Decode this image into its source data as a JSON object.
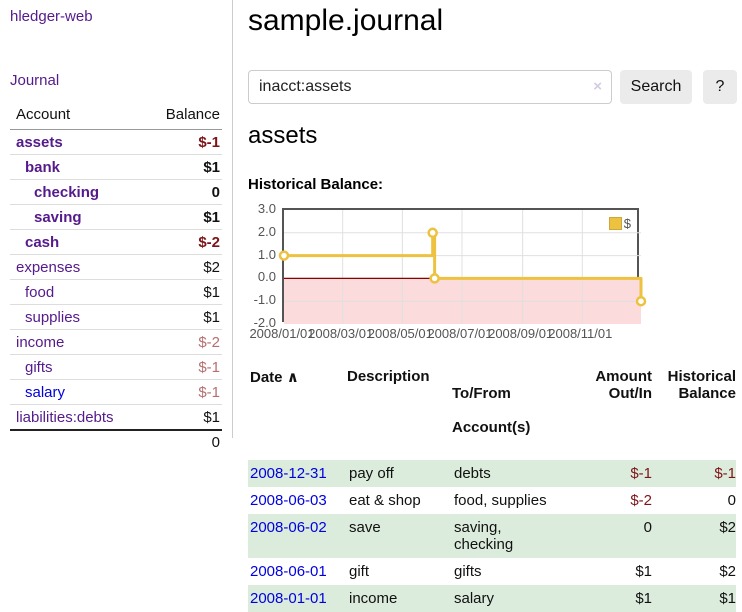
{
  "app": {
    "title": "hledger-web",
    "nav_journal": "Journal"
  },
  "sidebar": {
    "header": {
      "account": "Account",
      "balance": "Balance"
    },
    "accounts": [
      {
        "name": "assets",
        "depth": 0,
        "balance": "$-1",
        "emph": true,
        "bal_class": "bal-neg",
        "link_color": "purple"
      },
      {
        "name": "bank",
        "depth": 1,
        "balance": "$1",
        "emph": true,
        "bal_class": "",
        "link_color": "purple"
      },
      {
        "name": "checking",
        "depth": 2,
        "balance": "0",
        "emph": true,
        "bal_class": "",
        "link_color": "purple"
      },
      {
        "name": "saving",
        "depth": 2,
        "balance": "$1",
        "emph": true,
        "bal_class": "",
        "link_color": "purple"
      },
      {
        "name": "cash",
        "depth": 1,
        "balance": "$-2",
        "emph": true,
        "bal_class": "bal-neg",
        "link_color": "purple"
      },
      {
        "name": "expenses",
        "depth": 0,
        "balance": "$2",
        "emph": false,
        "bal_class": "",
        "link_color": "purple"
      },
      {
        "name": "food",
        "depth": 1,
        "balance": "$1",
        "emph": false,
        "bal_class": "",
        "link_color": "purple"
      },
      {
        "name": "supplies",
        "depth": 1,
        "balance": "$1",
        "emph": false,
        "bal_class": "",
        "link_color": "purple"
      },
      {
        "name": "income",
        "depth": 0,
        "balance": "$-2",
        "emph": false,
        "bal_class": "bal-neg-soft",
        "link_color": "purple"
      },
      {
        "name": "gifts",
        "depth": 1,
        "balance": "$-1",
        "emph": false,
        "bal_class": "bal-neg-soft",
        "link_color": "purple"
      },
      {
        "name": "salary",
        "depth": 1,
        "balance": "$-1",
        "emph": false,
        "bal_class": "bal-neg-soft",
        "link_color": "blue"
      },
      {
        "name": "liabilities:debts",
        "depth": 0,
        "balance": "$1",
        "emph": false,
        "bal_class": "",
        "link_color": "purple"
      }
    ],
    "total": "0"
  },
  "main": {
    "title": "sample.journal",
    "search": {
      "value": "inacct:assets",
      "clear_icon": "×",
      "button_label": "Search",
      "help_label": "?"
    },
    "account_heading": "assets",
    "chart_label": "Historical Balance:"
  },
  "chart_data": {
    "type": "line",
    "title": "Historical Balance:",
    "step": true,
    "series": [
      {
        "name": "$",
        "color": "#edc240",
        "points": [
          [
            "2008-01-01",
            1
          ],
          [
            "2008-06-01",
            2
          ],
          [
            "2008-06-03",
            0
          ],
          [
            "2008-12-31",
            -1
          ]
        ]
      }
    ],
    "ylim": [
      -2,
      3
    ],
    "yticks": [
      3.0,
      2.0,
      1.0,
      0.0,
      -1.0,
      -2.0
    ],
    "xticks": [
      "2008/01/01",
      "2008/03/01",
      "2008/05/01",
      "2008/07/01",
      "2008/09/01",
      "2008/11/01"
    ],
    "x_domain": [
      "2008-01-01",
      "2008-12-31"
    ],
    "grid_color": "#e0e0e0",
    "negative_region_fill": "#fbdbdb",
    "zero_line_color": "#8b0000",
    "legend_position": "top-right",
    "legend_label": "$"
  },
  "register": {
    "headers": {
      "date": "Date",
      "sort_indicator": "∧",
      "description": "Description",
      "accounts_l1": "To/From",
      "accounts_l2": "Account(s)",
      "amount_l1": "Amount",
      "amount_l2": "Out/In",
      "balance_l1": "Historical",
      "balance_l2": "Balance"
    },
    "rows": [
      {
        "date": "2008-12-31",
        "description": "pay off",
        "accounts": "debts",
        "amount": "$-1",
        "amount_neg": true,
        "balance": "$-1",
        "balance_neg": true,
        "shaded": true
      },
      {
        "date": "2008-06-03",
        "description": "eat & shop",
        "accounts": "food, supplies",
        "amount": "$-2",
        "amount_neg": true,
        "balance": "0",
        "balance_neg": false,
        "shaded": false
      },
      {
        "date": "2008-06-02",
        "description": "save",
        "accounts": "saving,\nchecking",
        "amount": "0",
        "amount_neg": false,
        "balance": "$2",
        "balance_neg": false,
        "shaded": true
      },
      {
        "date": "2008-06-01",
        "description": "gift",
        "accounts": "gifts",
        "amount": "$1",
        "amount_neg": false,
        "balance": "$2",
        "balance_neg": false,
        "shaded": false
      },
      {
        "date": "2008-01-01",
        "description": "income",
        "accounts": "salary",
        "amount": "$1",
        "amount_neg": false,
        "balance": "$1",
        "balance_neg": false,
        "shaded": true
      }
    ]
  }
}
